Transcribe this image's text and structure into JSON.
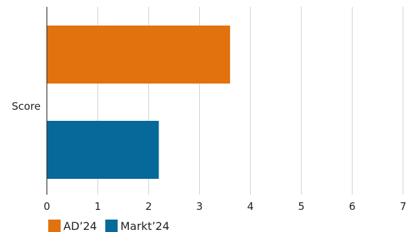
{
  "chart_data": {
    "type": "bar",
    "orientation": "horizontal",
    "title": "",
    "categories": [
      "Score"
    ],
    "series": [
      {
        "name": "AD’24",
        "values": [
          3.6
        ],
        "color": "#E2720E"
      },
      {
        "name": "Markt’24",
        "values": [
          2.2
        ],
        "color": "#07699A"
      }
    ],
    "xlim": [
      0,
      7
    ],
    "x_ticks": [
      "0",
      "1",
      "2",
      "3",
      "4",
      "5",
      "6",
      "7"
    ],
    "grid": "vertical",
    "legend": "bottom-left"
  }
}
